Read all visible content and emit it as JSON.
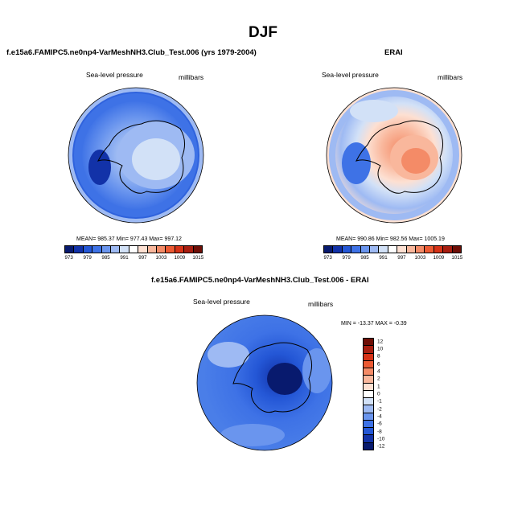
{
  "main_title": "DJF",
  "panels": [
    {
      "title": "f.e15a6.FAMIPC5.ne0np4-VarMeshNH3.Club_Test.006 (yrs 1979-2004)",
      "variable": "Sea-level pressure",
      "units": "millibars",
      "stats": "MEAN= 985.37   Min= 977.43   Max= 997.12"
    },
    {
      "title": "ERAI",
      "variable": "Sea-level pressure",
      "units": "millibars",
      "stats": "MEAN= 990.86   Min= 982.56   Max= 1005.19"
    },
    {
      "title": "f.e15a6.FAMIPC5.ne0np4-VarMeshNH3.Club_Test.006 - ERAI",
      "variable": "Sea-level pressure",
      "units": "millibars",
      "stats": "MIN = -13.37  MAX = -0.39"
    }
  ],
  "abs_colorbar": {
    "colors": [
      "#081a6e",
      "#1232a8",
      "#2457d6",
      "#3e72e6",
      "#6a95ee",
      "#9ebaf3",
      "#d2e1f7",
      "#ffffff",
      "#fde0d2",
      "#f9b79c",
      "#f48b67",
      "#ec5a33",
      "#d63217",
      "#a81e10",
      "#6e0e06"
    ],
    "ticks": [
      "973",
      "979",
      "985",
      "991",
      "997",
      "1003",
      "1009",
      "1015"
    ]
  },
  "diff_colorbar": {
    "colors": [
      "#6e0e06",
      "#a81e10",
      "#d63217",
      "#ec5a33",
      "#f48b67",
      "#f9b79c",
      "#fde0d2",
      "#ffffff",
      "#d2e1f7",
      "#9ebaf3",
      "#6a95ee",
      "#3e72e6",
      "#2457d6",
      "#1232a8",
      "#081a6e"
    ],
    "ticks": [
      "12",
      "10",
      "8",
      "6",
      "4",
      "2",
      "1",
      "0",
      "-1",
      "-2",
      "-4",
      "-6",
      "-8",
      "-10",
      "-12"
    ]
  }
}
